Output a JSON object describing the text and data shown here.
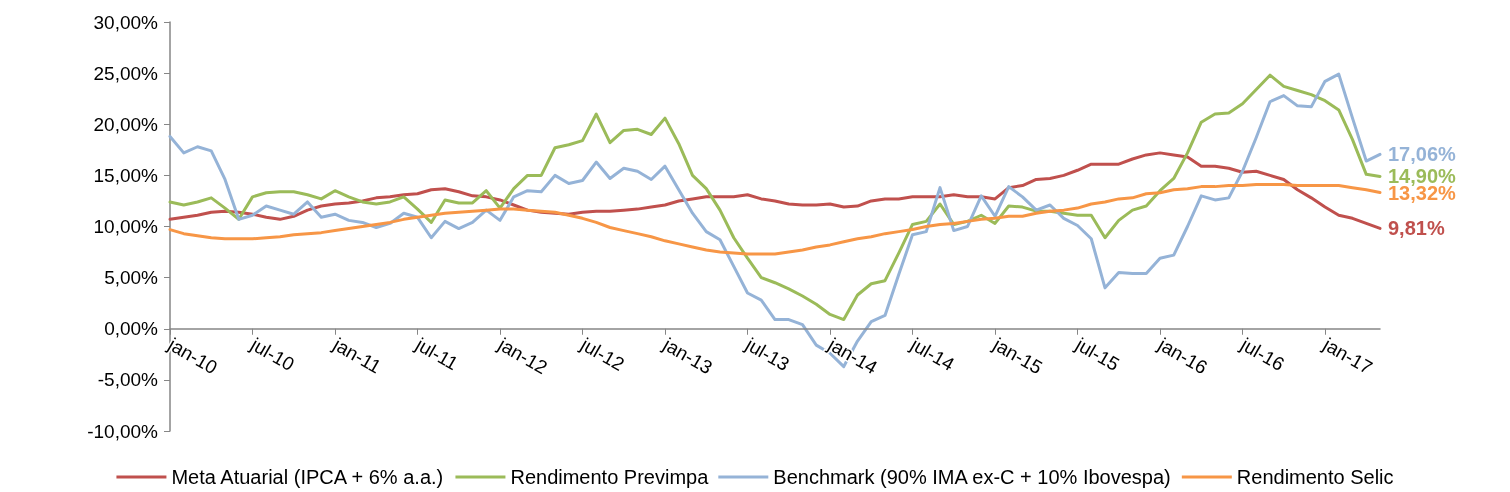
{
  "chart_data": {
    "type": "line",
    "categories": [
      "jan-10",
      null,
      null,
      null,
      null,
      null,
      "jul-10",
      null,
      null,
      null,
      null,
      null,
      "jan-11",
      null,
      null,
      null,
      null,
      null,
      "jul-11",
      null,
      null,
      null,
      null,
      null,
      "jan-12",
      null,
      null,
      null,
      null,
      null,
      "jul-12",
      null,
      null,
      null,
      null,
      null,
      "jan-13",
      null,
      null,
      null,
      null,
      null,
      "jul-13",
      null,
      null,
      null,
      null,
      null,
      "jan-14",
      null,
      null,
      null,
      null,
      null,
      "jul-14",
      null,
      null,
      null,
      null,
      null,
      "jan-15",
      null,
      null,
      null,
      null,
      null,
      "jul-15",
      null,
      null,
      null,
      null,
      null,
      "jan-16",
      null,
      null,
      null,
      null,
      null,
      "jul-16",
      null,
      null,
      null,
      null,
      null,
      "jan-17",
      null,
      null,
      null,
      null
    ],
    "ylim": [
      -10,
      30
    ],
    "yticks": [
      {
        "value": -10,
        "label": "-10,00%"
      },
      {
        "value": -5,
        "label": "-5,00%"
      },
      {
        "value": 0,
        "label": "0,00%"
      },
      {
        "value": 5,
        "label": "5,00%"
      },
      {
        "value": 10,
        "label": "10,00%"
      },
      {
        "value": 15,
        "label": "15,00%"
      },
      {
        "value": 20,
        "label": "20,00%"
      },
      {
        "value": 25,
        "label": "25,00%"
      },
      {
        "value": 30,
        "label": "30,00%"
      }
    ],
    "grid": false,
    "legend": "bottom",
    "marker": "none",
    "line_style": "solid",
    "series": [
      {
        "name": "Meta Atuarial (IPCA + 6% a.a.)",
        "color": "#c0504d",
        "values": [
          10.7,
          10.9,
          11.1,
          11.4,
          11.5,
          11.4,
          11.2,
          10.9,
          10.7,
          11.0,
          11.6,
          12.0,
          12.2,
          12.3,
          12.5,
          12.8,
          12.9,
          13.1,
          13.2,
          13.6,
          13.7,
          13.4,
          13.0,
          12.9,
          12.6,
          12.1,
          11.6,
          11.4,
          11.3,
          11.2,
          11.4,
          11.5,
          11.5,
          11.6,
          11.7,
          11.9,
          12.1,
          12.5,
          12.7,
          12.9,
          12.9,
          12.9,
          13.1,
          12.7,
          12.5,
          12.2,
          12.1,
          12.1,
          12.2,
          11.9,
          12.0,
          12.5,
          12.7,
          12.7,
          12.9,
          12.9,
          12.9,
          13.1,
          12.9,
          12.9,
          12.7,
          13.8,
          14.0,
          14.6,
          14.7,
          15.0,
          15.5,
          16.1,
          16.1,
          16.1,
          16.6,
          17.0,
          17.2,
          17.0,
          16.8,
          15.9,
          15.9,
          15.7,
          15.3,
          15.4,
          15.0,
          14.6,
          13.6,
          12.8,
          11.9,
          11.1,
          10.8,
          10.3,
          9.81
        ],
        "value_labels": [
          null,
          null,
          null,
          null,
          null,
          null,
          null,
          null,
          null,
          null,
          null,
          null,
          null,
          null,
          null,
          null,
          null,
          null,
          null,
          null,
          null,
          null,
          null,
          null,
          null,
          null,
          null,
          null,
          null,
          null,
          null,
          null,
          null,
          null,
          null,
          null,
          null,
          null,
          null,
          null,
          null,
          null,
          null,
          null,
          null,
          null,
          null,
          null,
          null,
          null,
          null,
          null,
          null,
          null,
          null,
          null,
          null,
          null,
          null,
          null,
          null,
          null,
          null,
          null,
          null,
          null,
          null,
          null,
          null,
          null,
          null,
          null,
          null,
          null,
          null,
          null,
          null,
          null,
          null,
          null,
          null,
          null,
          null,
          null,
          null,
          null,
          null,
          null,
          "9,81%"
        ]
      },
      {
        "name": "Rendimento Previmpa",
        "color": "#9bbb59",
        "values": [
          12.4,
          12.1,
          12.4,
          12.8,
          11.8,
          10.7,
          12.9,
          13.3,
          13.4,
          13.4,
          13.1,
          12.7,
          13.5,
          12.9,
          12.4,
          12.2,
          12.4,
          12.9,
          11.7,
          10.4,
          12.6,
          12.3,
          12.3,
          13.5,
          11.8,
          13.7,
          15.0,
          15.0,
          17.7,
          18.0,
          18.4,
          21.0,
          18.2,
          19.4,
          19.5,
          19.0,
          20.6,
          18.1,
          15.0,
          13.7,
          11.6,
          8.9,
          6.9,
          5.0,
          4.5,
          3.9,
          3.2,
          2.4,
          1.4,
          0.9,
          3.3,
          4.4,
          4.7,
          7.4,
          10.2,
          10.5,
          12.2,
          10.2,
          10.5,
          11.1,
          10.3,
          12.0,
          11.9,
          11.5,
          11.5,
          11.3,
          11.1,
          11.1,
          8.9,
          10.6,
          11.6,
          12.0,
          13.5,
          14.7,
          17.2,
          20.2,
          21.0,
          21.1,
          22.0,
          23.4,
          24.8,
          23.7,
          23.3,
          22.9,
          22.3,
          21.4,
          18.5,
          15.1,
          14.9
        ],
        "value_labels": [
          null,
          null,
          null,
          null,
          null,
          null,
          null,
          null,
          null,
          null,
          null,
          null,
          null,
          null,
          null,
          null,
          null,
          null,
          null,
          null,
          null,
          null,
          null,
          null,
          null,
          null,
          null,
          null,
          null,
          null,
          null,
          null,
          null,
          null,
          null,
          null,
          null,
          null,
          null,
          null,
          null,
          null,
          null,
          null,
          null,
          null,
          null,
          null,
          null,
          null,
          null,
          null,
          null,
          null,
          null,
          null,
          null,
          null,
          null,
          null,
          null,
          null,
          null,
          null,
          null,
          null,
          null,
          null,
          null,
          null,
          null,
          null,
          null,
          null,
          null,
          null,
          null,
          null,
          null,
          null,
          null,
          null,
          null,
          null,
          null,
          null,
          null,
          null,
          "14,90%"
        ]
      },
      {
        "name": "Benchmark (90% IMA ex-C + 10% Ibovespa)",
        "color": "#95b3d7",
        "values": [
          18.8,
          17.2,
          17.8,
          17.4,
          14.6,
          10.7,
          11.1,
          12.0,
          11.6,
          11.2,
          12.4,
          10.9,
          11.2,
          10.6,
          10.4,
          9.9,
          10.3,
          11.3,
          10.9,
          8.9,
          10.5,
          9.8,
          10.4,
          11.6,
          10.6,
          12.9,
          13.5,
          13.4,
          15.0,
          14.2,
          14.5,
          16.3,
          14.7,
          15.7,
          15.4,
          14.6,
          15.9,
          13.6,
          11.3,
          9.5,
          8.7,
          6.1,
          3.5,
          2.8,
          0.9,
          0.9,
          0.4,
          -1.6,
          -2.4,
          -3.7,
          -1.2,
          0.7,
          1.3,
          5.3,
          9.2,
          9.5,
          13.8,
          9.6,
          10.0,
          13.0,
          11.0,
          13.9,
          12.9,
          11.6,
          12.1,
          10.8,
          10.1,
          8.8,
          4.0,
          5.5,
          5.4,
          5.4,
          6.9,
          7.2,
          10.0,
          13.0,
          12.6,
          12.8,
          15.4,
          18.7,
          22.2,
          22.8,
          21.8,
          21.7,
          24.2,
          24.9,
          20.6,
          16.4,
          17.06
        ],
        "value_labels": [
          null,
          null,
          null,
          null,
          null,
          null,
          null,
          null,
          null,
          null,
          null,
          null,
          null,
          null,
          null,
          null,
          null,
          null,
          null,
          null,
          null,
          null,
          null,
          null,
          null,
          null,
          null,
          null,
          null,
          null,
          null,
          null,
          null,
          null,
          null,
          null,
          null,
          null,
          null,
          null,
          null,
          null,
          null,
          null,
          null,
          null,
          null,
          null,
          null,
          null,
          null,
          null,
          null,
          null,
          null,
          null,
          null,
          null,
          null,
          null,
          null,
          null,
          null,
          null,
          null,
          null,
          null,
          null,
          null,
          null,
          null,
          null,
          null,
          null,
          null,
          null,
          null,
          null,
          null,
          null,
          null,
          null,
          null,
          null,
          null,
          null,
          null,
          null,
          "17,06%"
        ]
      },
      {
        "name": "Rendimento Selic",
        "color": "#f79646",
        "values": [
          9.7,
          9.3,
          9.1,
          8.9,
          8.8,
          8.8,
          8.8,
          8.9,
          9.0,
          9.2,
          9.3,
          9.4,
          9.6,
          9.8,
          10.0,
          10.2,
          10.4,
          10.7,
          10.9,
          11.1,
          11.3,
          11.4,
          11.5,
          11.6,
          11.7,
          11.7,
          11.6,
          11.5,
          11.4,
          11.1,
          10.8,
          10.4,
          9.9,
          9.6,
          9.3,
          9.0,
          8.6,
          8.3,
          8.0,
          7.7,
          7.5,
          7.4,
          7.3,
          7.3,
          7.3,
          7.5,
          7.7,
          8.0,
          8.2,
          8.5,
          8.8,
          9.0,
          9.3,
          9.5,
          9.7,
          10.0,
          10.2,
          10.3,
          10.5,
          10.7,
          10.8,
          11.0,
          11.0,
          11.3,
          11.5,
          11.6,
          11.8,
          12.2,
          12.4,
          12.7,
          12.8,
          13.2,
          13.3,
          13.6,
          13.7,
          13.9,
          13.9,
          14.0,
          14.0,
          14.1,
          14.1,
          14.1,
          14.0,
          14.0,
          14.0,
          14.0,
          13.8,
          13.6,
          13.32
        ],
        "value_labels": [
          null,
          null,
          null,
          null,
          null,
          null,
          null,
          null,
          null,
          null,
          null,
          null,
          null,
          null,
          null,
          null,
          null,
          null,
          null,
          null,
          null,
          null,
          null,
          null,
          null,
          null,
          null,
          null,
          null,
          null,
          null,
          null,
          null,
          null,
          null,
          null,
          null,
          null,
          null,
          null,
          null,
          null,
          null,
          null,
          null,
          null,
          null,
          null,
          null,
          null,
          null,
          null,
          null,
          null,
          null,
          null,
          null,
          null,
          null,
          null,
          null,
          null,
          null,
          null,
          null,
          null,
          null,
          null,
          null,
          null,
          null,
          null,
          null,
          null,
          null,
          null,
          null,
          null,
          null,
          null,
          null,
          null,
          null,
          null,
          null,
          null,
          null,
          null,
          "13,32%"
        ]
      }
    ]
  }
}
